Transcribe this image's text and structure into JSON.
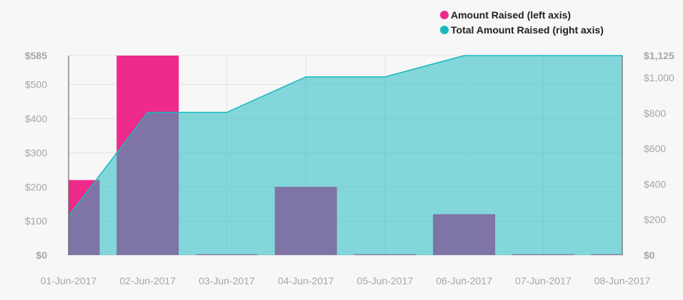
{
  "chart_data": {
    "type": "bar+area",
    "categories": [
      "01-Jun-2017",
      "02-Jun-2017",
      "03-Jun-2017",
      "04-Jun-2017",
      "05-Jun-2017",
      "06-Jun-2017",
      "07-Jun-2017",
      "08-Jun-2017"
    ],
    "series": [
      {
        "name": "Amount Raised (left axis)",
        "type": "bar",
        "axis": "left",
        "color": "#ee2a8a",
        "values": [
          220,
          585,
          0,
          200,
          0,
          120,
          0,
          0
        ]
      },
      {
        "name": "Total Amount Raised (right axis)",
        "type": "area",
        "axis": "right",
        "color": "#19b9bf",
        "values": [
          220,
          805,
          805,
          1005,
          1005,
          1125,
          1125,
          1125
        ]
      }
    ],
    "y_left": {
      "lim": [
        0,
        585
      ],
      "ticks": [
        0,
        100,
        200,
        300,
        400,
        500,
        585
      ],
      "tick_labels": [
        "$0",
        "$100",
        "$200",
        "$300",
        "$400",
        "$500",
        "$585"
      ]
    },
    "y_right": {
      "lim": [
        0,
        1125
      ],
      "ticks": [
        0,
        200,
        400,
        600,
        800,
        1000,
        1125
      ],
      "tick_labels": [
        "$0",
        "$200",
        "$400",
        "$600",
        "$800",
        "$1,000",
        "$1,125"
      ]
    },
    "grid": true,
    "legend": "top-right",
    "title": "",
    "xlabel": "",
    "ylabel": ""
  }
}
